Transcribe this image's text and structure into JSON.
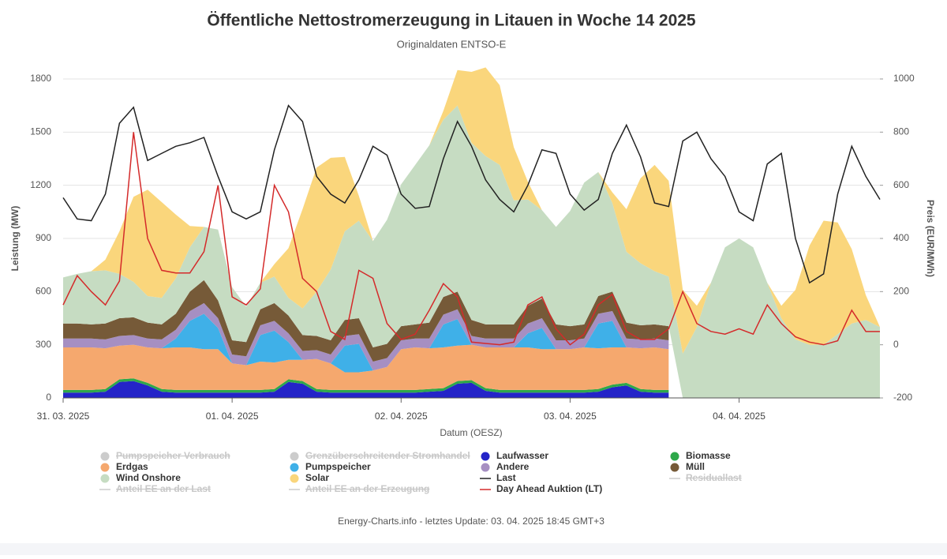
{
  "chart_data": {
    "type": "stacked_area",
    "title": "Öffentliche Nettostromerzeugung in Litauen in Woche 14 2025",
    "subtitle": "Originaldaten ENTSO-E",
    "xlabel": "Datum (OESZ)",
    "ylabel": "Leistung (MW)",
    "y2label": "Preis (EUR/MWh)",
    "footer": "Energy-Charts.info - letztes Update: 03. 04. 2025 18:45 GMT+3",
    "x": [
      0,
      2,
      4,
      6,
      8,
      10,
      12,
      14,
      16,
      18,
      20,
      22,
      24,
      26,
      28,
      30,
      32,
      34,
      36,
      38,
      40,
      42,
      44,
      46,
      48,
      50,
      52,
      54,
      56,
      58,
      60,
      62,
      64,
      66,
      68,
      70,
      72,
      74,
      76,
      78,
      80,
      82,
      84,
      86,
      88,
      90,
      92,
      94,
      96,
      98,
      100,
      102,
      104,
      106,
      108,
      110,
      112,
      114,
      116
    ],
    "xlim": [
      0,
      116
    ],
    "xticks": [
      {
        "value": 0,
        "label": "31. 03. 2025"
      },
      {
        "value": 24,
        "label": "01. 04. 2025"
      },
      {
        "value": 48,
        "label": "02. 04. 2025"
      },
      {
        "value": 72,
        "label": "03. 04. 2025"
      },
      {
        "value": 96,
        "label": "04. 04. 2025"
      }
    ],
    "ylim": [
      0,
      1800
    ],
    "yticks": [
      0,
      300,
      600,
      900,
      1200,
      1500,
      1800
    ],
    "y2lim": [
      -200,
      1000
    ],
    "y2ticks": [
      -200,
      0,
      200,
      400,
      600,
      800,
      1000
    ],
    "grid": true,
    "series": [
      {
        "name": "Pumpspeicher Verbrauch",
        "kind": "area",
        "visible": false,
        "color": "#cccccc"
      },
      {
        "name": "Grenzüberschreitender Stromhandel",
        "kind": "area",
        "visible": false,
        "color": "#cccccc"
      },
      {
        "name": "Laufwasser",
        "kind": "area",
        "visible": true,
        "color": "#2424c8",
        "values": [
          30,
          30,
          30,
          35,
          90,
          95,
          70,
          35,
          30,
          30,
          30,
          30,
          30,
          30,
          30,
          35,
          90,
          80,
          35,
          30,
          30,
          30,
          30,
          30,
          30,
          30,
          35,
          40,
          80,
          85,
          40,
          30,
          30,
          30,
          30,
          30,
          30,
          30,
          35,
          60,
          70,
          35,
          30,
          30,
          null,
          null,
          null,
          null,
          null,
          null,
          null,
          null,
          null,
          null,
          null,
          null,
          null,
          null,
          null
        ]
      },
      {
        "name": "Biomasse",
        "kind": "area",
        "visible": true,
        "color": "#2ea84a",
        "values": [
          15,
          15,
          15,
          15,
          15,
          15,
          15,
          15,
          15,
          15,
          15,
          15,
          15,
          15,
          15,
          15,
          15,
          15,
          15,
          15,
          15,
          15,
          15,
          15,
          15,
          15,
          15,
          15,
          15,
          15,
          15,
          15,
          15,
          15,
          15,
          15,
          15,
          15,
          15,
          15,
          15,
          15,
          15,
          15,
          null,
          null,
          null,
          null,
          null,
          null,
          null,
          null,
          null,
          null,
          null,
          null,
          null,
          null,
          null
        ]
      },
      {
        "name": "Erdgas",
        "kind": "area",
        "visible": true,
        "color": "#f5a86e",
        "values": [
          240,
          240,
          240,
          230,
          190,
          190,
          200,
          230,
          240,
          240,
          230,
          230,
          150,
          140,
          160,
          150,
          110,
          120,
          170,
          150,
          100,
          100,
          110,
          130,
          230,
          240,
          230,
          230,
          200,
          200,
          230,
          240,
          240,
          240,
          230,
          230,
          230,
          240,
          230,
          210,
          200,
          230,
          240,
          230,
          null,
          null,
          null,
          null,
          null,
          null,
          null,
          null,
          null,
          null,
          null,
          null,
          null,
          null,
          null
        ]
      },
      {
        "name": "Pumpspeicher",
        "kind": "area",
        "visible": true,
        "color": "#3fb0e8",
        "values": [
          0,
          0,
          0,
          0,
          0,
          0,
          0,
          0,
          50,
          150,
          200,
          120,
          0,
          0,
          150,
          180,
          100,
          0,
          0,
          0,
          150,
          160,
          0,
          0,
          0,
          0,
          0,
          130,
          150,
          0,
          0,
          0,
          0,
          80,
          120,
          0,
          0,
          0,
          140,
          150,
          0,
          0,
          0,
          0,
          null,
          null,
          null,
          null,
          null,
          null,
          null,
          null,
          null,
          null,
          null,
          null,
          null,
          null,
          null
        ]
      },
      {
        "name": "Andere",
        "kind": "area",
        "visible": true,
        "color": "#a68fc2",
        "values": [
          50,
          50,
          50,
          50,
          55,
          55,
          50,
          50,
          50,
          55,
          60,
          55,
          50,
          50,
          55,
          55,
          50,
          50,
          50,
          50,
          55,
          55,
          50,
          50,
          50,
          50,
          55,
          55,
          55,
          50,
          50,
          50,
          50,
          55,
          55,
          50,
          50,
          50,
          55,
          55,
          50,
          50,
          50,
          50,
          null,
          null,
          null,
          null,
          null,
          null,
          null,
          null,
          null,
          null,
          null,
          null,
          null,
          null,
          null
        ]
      },
      {
        "name": "Müll",
        "kind": "area",
        "visible": true,
        "color": "#765a38",
        "values": [
          85,
          85,
          80,
          90,
          100,
          100,
          90,
          85,
          90,
          110,
          130,
          100,
          80,
          80,
          90,
          100,
          100,
          90,
          80,
          80,
          90,
          90,
          80,
          80,
          80,
          80,
          90,
          100,
          100,
          90,
          80,
          80,
          80,
          100,
          110,
          90,
          80,
          80,
          100,
          110,
          90,
          80,
          80,
          80,
          null,
          null,
          null,
          null,
          null,
          null,
          null,
          null,
          null,
          null,
          null,
          null,
          null,
          null,
          null
        ]
      },
      {
        "name": "Wind Onshore",
        "kind": "area",
        "visible": true,
        "color": "#c6dcc2",
        "values": [
          260,
          280,
          300,
          300,
          250,
          200,
          150,
          150,
          200,
          250,
          300,
          400,
          300,
          200,
          150,
          150,
          100,
          150,
          250,
          400,
          500,
          550,
          600,
          700,
          800,
          900,
          1000,
          1000,
          1050,
          1000,
          950,
          900,
          700,
          600,
          500,
          550,
          650,
          800,
          700,
          500,
          400,
          350,
          300,
          280,
          250,
          400,
          650,
          850,
          900,
          850,
          650,
          450,
          330,
          300,
          300,
          360,
          420,
          440,
          400
        ]
      },
      {
        "name": "Solar",
        "kind": "area",
        "visible": true,
        "color": "#fad67c",
        "values": [
          0,
          0,
          0,
          60,
          240,
          480,
          600,
          540,
          360,
          120,
          0,
          0,
          0,
          0,
          0,
          70,
          280,
          560,
          700,
          630,
          420,
          140,
          0,
          0,
          0,
          0,
          0,
          50,
          200,
          400,
          500,
          450,
          300,
          100,
          0,
          0,
          0,
          0,
          0,
          60,
          240,
          480,
          600,
          540,
          360,
          120,
          0,
          0,
          0,
          0,
          0,
          70,
          280,
          560,
          700,
          630,
          420,
          140,
          0
        ]
      },
      {
        "name": "Last",
        "kind": "line",
        "visible": true,
        "color": "#222222",
        "values": [
          1130,
          1010,
          1000,
          1150,
          1550,
          1640,
          1340,
          1380,
          1420,
          1440,
          1470,
          1250,
          1050,
          1010,
          1050,
          1400,
          1650,
          1560,
          1250,
          1150,
          1100,
          1230,
          1420,
          1370,
          1150,
          1070,
          1080,
          1350,
          1560,
          1420,
          1230,
          1120,
          1050,
          1200,
          1400,
          1380,
          1150,
          1060,
          1120,
          1380,
          1540,
          1360,
          1100,
          1080,
          1450,
          1500,
          1350,
          1250,
          1050,
          1000,
          1320,
          1380,
          900,
          650,
          700,
          1150,
          1420,
          1250,
          1120
        ]
      },
      {
        "name": "Residuallast",
        "kind": "line",
        "visible": false,
        "color": "#cccccc"
      },
      {
        "name": "Anteil EE an der Last",
        "kind": "line",
        "visible": false,
        "color": "#cccccc"
      },
      {
        "name": "Anteil EE an der Erzeugung",
        "kind": "line",
        "visible": false,
        "color": "#cccccc"
      },
      {
        "name": "Day Ahead Auktion (LT)",
        "kind": "line",
        "visible": true,
        "color": "#d42a2a",
        "axis": "y2",
        "values": [
          150,
          260,
          200,
          150,
          240,
          800,
          400,
          280,
          270,
          270,
          350,
          600,
          180,
          150,
          210,
          600,
          500,
          250,
          200,
          50,
          20,
          280,
          250,
          80,
          20,
          40,
          130,
          230,
          180,
          10,
          5,
          0,
          10,
          150,
          180,
          60,
          0,
          40,
          150,
          190,
          50,
          20,
          20,
          60,
          200,
          80,
          50,
          40,
          60,
          40,
          150,
          80,
          30,
          10,
          0,
          15,
          130,
          50,
          50
        ]
      }
    ]
  }
}
